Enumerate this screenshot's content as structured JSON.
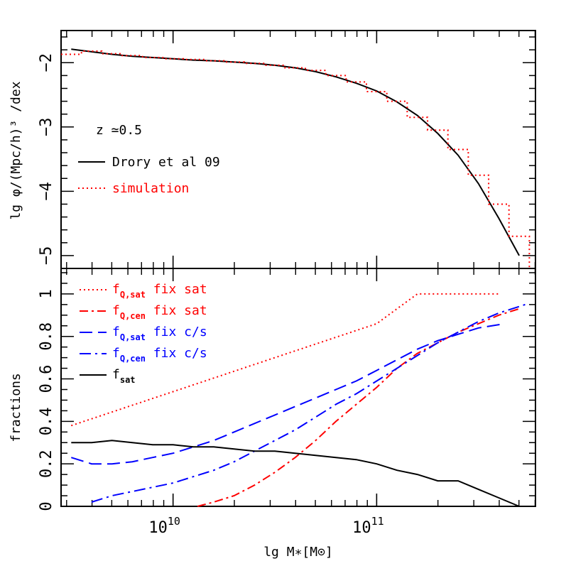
{
  "colors": {
    "black": "#000000",
    "red": "#ff0000",
    "blue": "#0000ff"
  },
  "chart_data": [
    {
      "panel": "top",
      "type": "line",
      "xlabel": "",
      "ylabel": "lg φ/(Mpc/h)³ /dex",
      "xlim": [
        9.45,
        11.78
      ],
      "ylim": [
        -5.2,
        -1.5
      ],
      "x_log_display": true,
      "x_tick_labels": [
        {
          "x": 10,
          "base": "10",
          "exp": "10"
        },
        {
          "x": 11,
          "base": "10",
          "exp": "11"
        }
      ],
      "y_ticks": [
        -2,
        -3,
        -4,
        -5
      ],
      "y_tick_labels": [
        "−2",
        "−3",
        "−4",
        "−5"
      ],
      "annotation": "z ≃0.5",
      "series": [
        {
          "name": "Drory et al 09",
          "style": "solid",
          "color": "#000000",
          "x": [
            9.5,
            9.6,
            9.7,
            9.8,
            9.9,
            10.0,
            10.1,
            10.2,
            10.3,
            10.4,
            10.5,
            10.6,
            10.7,
            10.8,
            10.9,
            11.0,
            11.1,
            11.2,
            11.3,
            11.4,
            11.5,
            11.6,
            11.7
          ],
          "y": [
            -1.79,
            -1.83,
            -1.87,
            -1.9,
            -1.92,
            -1.94,
            -1.96,
            -1.97,
            -1.99,
            -2.01,
            -2.04,
            -2.08,
            -2.14,
            -2.22,
            -2.32,
            -2.44,
            -2.61,
            -2.82,
            -3.1,
            -3.44,
            -3.88,
            -4.42,
            -5.0
          ]
        },
        {
          "name": "simulation",
          "style": "dotted-steps",
          "color": "#ff0000",
          "x": [
            9.5,
            9.6,
            9.7,
            9.8,
            9.9,
            10.0,
            10.1,
            10.2,
            10.3,
            10.4,
            10.5,
            10.6,
            10.7,
            10.8,
            10.9,
            11.0,
            11.1,
            11.2,
            11.3,
            11.4,
            11.5,
            11.6,
            11.7
          ],
          "y": [
            -1.87,
            -1.82,
            -1.86,
            -1.89,
            -1.92,
            -1.94,
            -1.95,
            -1.97,
            -1.99,
            -2.01,
            -2.04,
            -2.08,
            -2.12,
            -2.2,
            -2.3,
            -2.45,
            -2.6,
            -2.85,
            -3.05,
            -3.35,
            -3.75,
            -4.2,
            -4.7
          ]
        }
      ]
    },
    {
      "panel": "bottom",
      "type": "line",
      "xlabel": "lg M∗[M⊙]",
      "ylabel": "fractions",
      "xlim": [
        9.45,
        11.78
      ],
      "ylim": [
        0,
        1.12
      ],
      "y_ticks": [
        0,
        0.2,
        0.4,
        0.6,
        0.8,
        1
      ],
      "y_tick_labels": [
        "0",
        "0.2",
        "0.4",
        "0.6",
        "0.8",
        "1"
      ],
      "series": [
        {
          "name": "fQ,sat fix sat",
          "style": "dotted",
          "color": "#ff0000",
          "x": [
            9.5,
            10.0,
            10.5,
            11.0,
            11.1,
            11.2,
            11.3,
            11.4,
            11.5,
            11.6
          ],
          "y": [
            0.38,
            0.54,
            0.7,
            0.86,
            0.93,
            1.0,
            1.0,
            1.0,
            1.0,
            1.0
          ]
        },
        {
          "name": "fQ,cen fix sat",
          "style": "dashdot",
          "color": "#ff0000",
          "x": [
            10.12,
            10.2,
            10.3,
            10.4,
            10.5,
            10.6,
            10.7,
            10.8,
            10.9,
            11.0,
            11.1,
            11.2,
            11.3,
            11.4,
            11.5,
            11.6,
            11.7
          ],
          "y": [
            0.0,
            0.02,
            0.05,
            0.1,
            0.16,
            0.23,
            0.31,
            0.4,
            0.48,
            0.56,
            0.65,
            0.72,
            0.77,
            0.82,
            0.86,
            0.9,
            0.93
          ]
        },
        {
          "name": "fQ,sat fix c/s",
          "style": "longdash",
          "color": "#0000ff",
          "x": [
            9.5,
            9.6,
            9.7,
            9.8,
            9.9,
            10.0,
            10.1,
            10.2,
            10.3,
            10.4,
            10.5,
            10.6,
            10.7,
            10.8,
            10.9,
            11.0,
            11.1,
            11.2,
            11.3,
            11.4,
            11.5,
            11.63
          ],
          "y": [
            0.23,
            0.2,
            0.2,
            0.21,
            0.23,
            0.25,
            0.28,
            0.31,
            0.35,
            0.39,
            0.43,
            0.47,
            0.51,
            0.55,
            0.59,
            0.64,
            0.69,
            0.74,
            0.78,
            0.81,
            0.84,
            0.86
          ]
        },
        {
          "name": "fQ,cen fix c/s",
          "style": "dashdot-long",
          "color": "#0000ff",
          "x": [
            9.6,
            9.7,
            9.8,
            9.9,
            10.0,
            10.1,
            10.2,
            10.3,
            10.4,
            10.5,
            10.6,
            10.7,
            10.8,
            10.9,
            11.0,
            11.1,
            11.2,
            11.3,
            11.4,
            11.5,
            11.6,
            11.73
          ],
          "y": [
            0.02,
            0.05,
            0.07,
            0.09,
            0.11,
            0.14,
            0.17,
            0.21,
            0.26,
            0.31,
            0.36,
            0.42,
            0.48,
            0.53,
            0.59,
            0.65,
            0.71,
            0.77,
            0.82,
            0.87,
            0.91,
            0.95
          ]
        },
        {
          "name": "fsat",
          "style": "solid",
          "color": "#000000",
          "x": [
            9.5,
            9.6,
            9.7,
            9.8,
            9.9,
            10.0,
            10.1,
            10.2,
            10.3,
            10.4,
            10.5,
            10.6,
            10.7,
            10.8,
            10.9,
            11.0,
            11.1,
            11.2,
            11.3,
            11.4,
            11.5,
            11.6,
            11.7
          ],
          "y": [
            0.3,
            0.3,
            0.31,
            0.3,
            0.29,
            0.29,
            0.28,
            0.28,
            0.27,
            0.26,
            0.26,
            0.25,
            0.24,
            0.23,
            0.22,
            0.2,
            0.17,
            0.15,
            0.12,
            0.12,
            0.08,
            0.04,
            0.0
          ]
        }
      ],
      "legend": [
        {
          "main": "f",
          "sub": "Q,sat",
          "rest": " fix sat",
          "color": "#ff0000",
          "style": "dotted"
        },
        {
          "main": "f",
          "sub": "Q,cen",
          "rest": " fix sat",
          "color": "#ff0000",
          "style": "dashdot"
        },
        {
          "main": "f",
          "sub": "Q,sat",
          "rest": " fix c/s",
          "color": "#0000ff",
          "style": "longdash"
        },
        {
          "main": "f",
          "sub": "Q,cen",
          "rest": " fix c/s",
          "color": "#0000ff",
          "style": "dashdot-long"
        },
        {
          "main": "f",
          "sub": "sat",
          "rest": "",
          "color": "#000000",
          "style": "solid"
        }
      ]
    }
  ]
}
